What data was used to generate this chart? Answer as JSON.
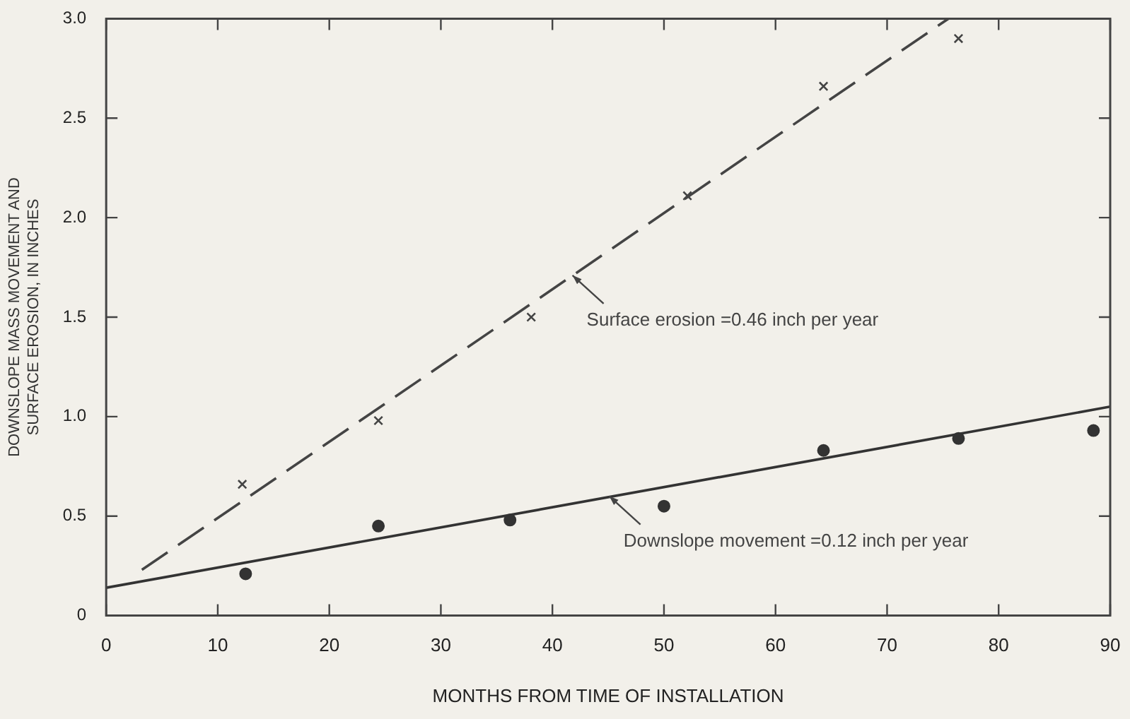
{
  "chart_data": {
    "type": "scatter",
    "xlabel": "MONTHS FROM TIME OF INSTALLATION",
    "ylabel": "DOWNSLOPE MASS MOVEMENT AND\nSURFACE EROSION, IN INCHES",
    "xlim": [
      0,
      90
    ],
    "xticks": [
      0,
      10,
      20,
      30,
      40,
      50,
      60,
      70,
      80,
      90
    ],
    "ylim": [
      0,
      3
    ],
    "yticks": [
      0,
      {
        "value": 0.5,
        "label": "0.5"
      },
      {
        "value": 1,
        "label": "1.0"
      },
      {
        "value": 1.5,
        "label": "1.5"
      },
      {
        "value": 2,
        "label": "2.0"
      },
      {
        "value": 2.5,
        "label": "2.5"
      },
      {
        "value": 3,
        "label": "3.0"
      }
    ],
    "grid": false,
    "legend": false,
    "series": [
      {
        "type": "scatter",
        "marker": "cross",
        "color": "#444444",
        "x": [
          12.2,
          24.4,
          38.1,
          52.1,
          64.3,
          76.4
        ],
        "values": [
          0.66,
          0.98,
          1.5,
          2.11,
          2.66,
          2.9
        ]
      },
      {
        "type": "scatter",
        "marker": "circle",
        "color": "#333333",
        "x": [
          12.5,
          24.4,
          36.2,
          50.0,
          64.3,
          76.4,
          88.5
        ],
        "values": [
          0.21,
          0.45,
          0.48,
          0.55,
          0.83,
          0.89,
          0.93
        ]
      },
      {
        "type": "line",
        "marker": "none",
        "line_style": "dashed",
        "color": "#444444",
        "x": [
          3.2,
          75.5
        ],
        "values": [
          0.23,
          3.0
        ]
      },
      {
        "type": "line",
        "marker": "none",
        "line_style": "solid",
        "color": "#333333",
        "x": [
          0,
          90
        ],
        "values": [
          0.14,
          1.05
        ]
      }
    ],
    "annotations": [
      {
        "text": "Surface erosion =0.46 inch per year",
        "x": 41.8,
        "y": 1.71
      },
      {
        "text": "Downslope movement =0.12 inch per year",
        "x": 45.1,
        "y": 0.6
      }
    ]
  }
}
